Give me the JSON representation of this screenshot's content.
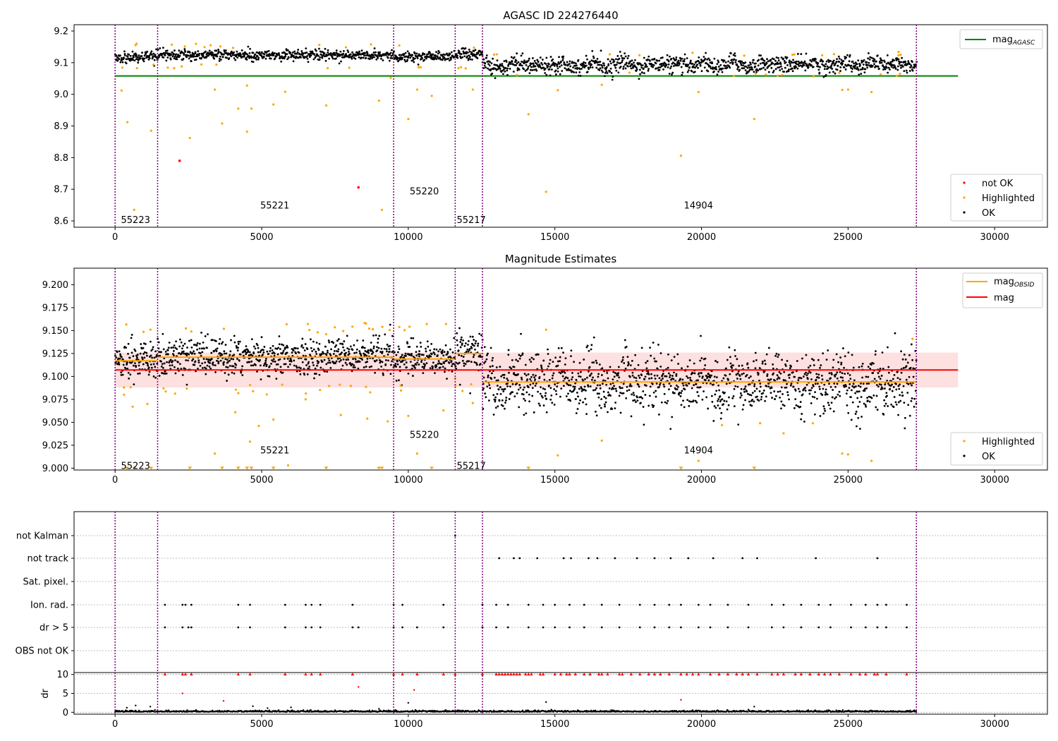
{
  "chart_data": [
    {
      "type": "scatter",
      "title": "AGASC ID 224276440",
      "xlim": [
        -1400,
        31800
      ],
      "ylim": [
        8.58,
        9.22
      ],
      "x_ticks": [
        0,
        5000,
        10000,
        15000,
        20000,
        25000,
        30000
      ],
      "y_ticks": [
        8.6,
        8.7,
        8.8,
        8.9,
        9.0,
        9.1,
        9.2
      ],
      "y_tick_labels": [
        "8.6",
        "8.7",
        "8.8",
        "8.9",
        "9.0",
        "9.1",
        "9.2"
      ],
      "obsid_boundaries": [
        0,
        1450,
        9500,
        11600,
        12530,
        27330
      ],
      "obsid_labels": [
        {
          "text": "55223",
          "x": 200,
          "y": 8.605
        },
        {
          "text": "55221",
          "x": 4950,
          "y": 8.65
        },
        {
          "text": "55220",
          "x": 10050,
          "y": 8.695
        },
        {
          "text": "55217",
          "x": 11650,
          "y": 8.605
        },
        {
          "text": "14904",
          "x": 19400,
          "y": 8.65
        }
      ],
      "agasc_mag": {
        "value": 9.058,
        "x_range": [
          0,
          28750
        ],
        "color": "#008000"
      },
      "segments": [
        {
          "x": [
            0,
            1450
          ],
          "center": 9.117,
          "spread": 0.009
        },
        {
          "x": [
            1450,
            9500
          ],
          "center": 9.124,
          "spread": 0.008
        },
        {
          "x": [
            9500,
            11600
          ],
          "center": 9.12,
          "spread": 0.008
        },
        {
          "x": [
            11600,
            12530
          ],
          "center": 9.126,
          "spread": 0.01
        },
        {
          "x": [
            12530,
            27330
          ],
          "center": 9.094,
          "spread": 0.013
        }
      ],
      "highlighted_points": [
        [
          220,
          9.012
        ],
        [
          420,
          8.912
        ],
        [
          650,
          8.635
        ],
        [
          1230,
          8.885
        ],
        [
          2550,
          8.862
        ],
        [
          3400,
          9.015
        ],
        [
          3650,
          8.908
        ],
        [
          4200,
          8.955
        ],
        [
          4500,
          8.882
        ],
        [
          4500,
          9.028
        ],
        [
          4650,
          8.955
        ],
        [
          5400,
          8.968
        ],
        [
          5800,
          9.008
        ],
        [
          7200,
          8.965
        ],
        [
          9000,
          8.98
        ],
        [
          9100,
          8.635
        ],
        [
          9400,
          9.052
        ],
        [
          10000,
          8.922
        ],
        [
          10300,
          9.015
        ],
        [
          10800,
          8.995
        ],
        [
          12200,
          9.015
        ],
        [
          14100,
          8.937
        ],
        [
          14700,
          8.692
        ],
        [
          15100,
          9.013
        ],
        [
          16600,
          9.03
        ],
        [
          19300,
          8.806
        ],
        [
          19900,
          9.007
        ],
        [
          21800,
          8.922
        ],
        [
          24800,
          9.014
        ],
        [
          25000,
          9.015
        ],
        [
          25800,
          9.007
        ]
      ],
      "not_ok_points": [
        [
          2200,
          8.79
        ],
        [
          8300,
          8.706
        ]
      ],
      "legend_line": {
        "label": "mag",
        "sub": "AGASC",
        "color": "#008000"
      },
      "legend_points": [
        {
          "label": "not OK",
          "color": "#ff0000"
        },
        {
          "label": "Highlighted",
          "color": "#ffa500"
        },
        {
          "label": "OK",
          "color": "#000000"
        }
      ]
    },
    {
      "type": "scatter",
      "title": "Magnitude Estimates",
      "xlim": [
        -1400,
        31800
      ],
      "ylim": [
        8.998,
        9.218
      ],
      "x_ticks": [
        0,
        5000,
        10000,
        15000,
        20000,
        25000,
        30000
      ],
      "y_ticks": [
        9.0,
        9.025,
        9.05,
        9.075,
        9.1,
        9.125,
        9.15,
        9.175,
        9.2
      ],
      "y_tick_labels": [
        "9.000",
        "9.025",
        "9.050",
        "9.075",
        "9.100",
        "9.125",
        "9.150",
        "9.175",
        "9.200"
      ],
      "obsid_boundaries": [
        0,
        1450,
        9500,
        11600,
        12530,
        27330
      ],
      "obsid_labels": [
        {
          "text": "55223",
          "x": 200,
          "y": 9.003
        },
        {
          "text": "55221",
          "x": 4950,
          "y": 9.02
        },
        {
          "text": "55220",
          "x": 10050,
          "y": 9.037
        },
        {
          "text": "55217",
          "x": 11650,
          "y": 9.003
        },
        {
          "text": "14904",
          "x": 19400,
          "y": 9.02
        }
      ],
      "mag": {
        "value": 9.107,
        "band": [
          9.088,
          9.126
        ],
        "x_range": [
          0,
          28750
        ],
        "color": "#ff0000",
        "band_color": "#fde0e0"
      },
      "mag_obsid": [
        {
          "x": [
            0,
            1450
          ],
          "value": 9.117
        },
        {
          "x": [
            1450,
            9500
          ],
          "value": 9.121
        },
        {
          "x": [
            9500,
            11600
          ],
          "value": 9.119
        },
        {
          "x": [
            11600,
            12530
          ],
          "value": 9.125
        },
        {
          "x": [
            12530,
            27330
          ],
          "value": 9.094
        }
      ],
      "segments": [
        {
          "x": [
            0,
            1450
          ],
          "center": 9.117,
          "spread": 0.009
        },
        {
          "x": [
            1450,
            9500
          ],
          "center": 9.121,
          "spread": 0.01
        },
        {
          "x": [
            9500,
            11600
          ],
          "center": 9.119,
          "spread": 0.009
        },
        {
          "x": [
            11600,
            12530
          ],
          "center": 9.124,
          "spread": 0.011
        },
        {
          "x": [
            12530,
            27330
          ],
          "center": 9.094,
          "spread": 0.016
        }
      ],
      "highlighted_points": [
        [
          300,
          9.088
        ],
        [
          600,
          9.067
        ],
        [
          1100,
          9.07
        ],
        [
          1650,
          9.087
        ],
        [
          4100,
          9.061
        ],
        [
          4600,
          9.029
        ],
        [
          4900,
          9.046
        ],
        [
          5400,
          9.053
        ],
        [
          5700,
          9.091
        ],
        [
          5900,
          9.003
        ],
        [
          6500,
          9.075
        ],
        [
          7700,
          9.058
        ],
        [
          8600,
          9.054
        ],
        [
          9300,
          9.051
        ],
        [
          10000,
          9.057
        ],
        [
          10300,
          9.016
        ],
        [
          11200,
          9.063
        ],
        [
          11600,
          9.098
        ],
        [
          12200,
          9.071
        ],
        [
          14700,
          9.151
        ],
        [
          15100,
          9.014
        ],
        [
          16600,
          9.03
        ],
        [
          19900,
          9.008
        ],
        [
          20700,
          9.047
        ],
        [
          22000,
          9.049
        ],
        [
          22800,
          9.038
        ],
        [
          23800,
          9.049
        ],
        [
          24800,
          9.016
        ],
        [
          25000,
          9.015
        ],
        [
          25800,
          9.008
        ],
        [
          27200,
          9.141
        ],
        [
          3400,
          9.016
        ],
        [
          7200,
          9.146
        ],
        [
          2600,
          9.149
        ]
      ],
      "clipped_points": [
        400,
        650,
        1230,
        2550,
        3650,
        4200,
        4500,
        4650,
        5400,
        7200,
        9000,
        9100,
        10800,
        14100,
        19300,
        21800
      ],
      "legend_lines": [
        {
          "label": "mag",
          "sub": "OBSID",
          "color": "#ffa500"
        },
        {
          "label": "mag",
          "sub": "",
          "color": "#ff0000"
        }
      ],
      "legend_points": [
        {
          "label": "Highlighted",
          "color": "#ffa500"
        },
        {
          "label": "OK",
          "color": "#000000"
        }
      ]
    },
    {
      "type": "scatter",
      "title": "",
      "xlim": [
        -1400,
        31800
      ],
      "categories": [
        "not Kalman",
        "not track",
        "Sat. pixel.",
        "Ion. rad.",
        "dr > 5",
        "OBS not OK"
      ],
      "flag_points": {
        "not Kalman": [
          11600
        ],
        "not track": [
          13100,
          13600,
          13800,
          14400,
          15300,
          15550,
          16150,
          16450,
          17050,
          17800,
          18400,
          18950,
          19550,
          20400,
          21400,
          21900,
          23900,
          26000
        ],
        "Sat. pixel.": [],
        "Ion. rad.": [
          1700,
          2300,
          2400,
          2600,
          4200,
          4600,
          5800,
          6500,
          6700,
          7000,
          8100,
          9500,
          9800,
          11200,
          12530,
          13000,
          13400,
          14100,
          14600,
          15000,
          15500,
          16000,
          16600,
          17200,
          17900,
          18400,
          18900,
          19300,
          19900,
          20300,
          20900,
          21600,
          22400,
          22800,
          23400,
          24000,
          24400,
          25100,
          25600,
          26000,
          26300,
          27000
        ],
        "dr > 5": [
          1700,
          2300,
          2500,
          2600,
          4200,
          4600,
          5800,
          6500,
          6700,
          7000,
          8100,
          8300,
          9500,
          9800,
          10300,
          11200,
          12530,
          13000,
          13400,
          14100,
          14600,
          15000,
          15500,
          16000,
          16600,
          17200,
          17900,
          18400,
          18900,
          19300,
          19900,
          20300,
          20900,
          21600,
          22400,
          22800,
          23400,
          24000,
          24400,
          25100,
          25600,
          26000,
          26300,
          27000
        ],
        "OBS not OK": []
      }
    },
    {
      "type": "scatter",
      "title": "",
      "ylabel": "dr",
      "xlim": [
        -1400,
        31800
      ],
      "ylim": [
        -0.5,
        10.5
      ],
      "x_ticks": [
        0,
        5000,
        10000,
        15000,
        20000,
        25000,
        30000
      ],
      "y_ticks": [
        0,
        5,
        10
      ],
      "clipped_x": [
        1700,
        2300,
        2400,
        2600,
        4200,
        4600,
        5800,
        6500,
        6700,
        7000,
        8100,
        9500,
        9800,
        10300,
        11200,
        11600,
        12530,
        13000,
        13100,
        13200,
        13300,
        13400,
        13500,
        13600,
        13700,
        13800,
        14000,
        14100,
        14200,
        14500,
        14600,
        15000,
        15200,
        15400,
        15500,
        15700,
        16000,
        16200,
        16500,
        16600,
        16800,
        17200,
        17300,
        17600,
        17900,
        18200,
        18400,
        18600,
        18900,
        19300,
        19500,
        19700,
        19900,
        20300,
        20600,
        20900,
        21200,
        21400,
        21600,
        21900,
        22400,
        22600,
        22800,
        23200,
        23400,
        23700,
        24000,
        24200,
        24400,
        24700,
        25100,
        25400,
        25600,
        25900,
        26000,
        26300,
        27000
      ],
      "red_points": [
        [
          2300,
          5.0
        ],
        [
          8300,
          6.7
        ],
        [
          10200,
          5.9
        ],
        [
          19300,
          3.3
        ],
        [
          3700,
          3.0
        ]
      ],
      "outlier_points": [
        [
          400,
          1.2
        ],
        [
          700,
          1.8
        ],
        [
          1200,
          1.5
        ],
        [
          4700,
          1.6
        ],
        [
          5200,
          1.1
        ],
        [
          6000,
          1.3
        ],
        [
          9000,
          0.9
        ],
        [
          10000,
          2.5
        ],
        [
          14700,
          2.7
        ],
        [
          21800,
          1.5
        ]
      ]
    }
  ],
  "flag_labels": [
    "not Kalman",
    "not track",
    "Sat. pixel.",
    "Ion. rad.",
    "dr > 5",
    "OBS not OK"
  ],
  "colors": {
    "ok": "#000000",
    "highlighted": "#ffa500",
    "not_ok": "#ff0000",
    "boundary": "#800080",
    "agasc": "#008000",
    "mag": "#ff0000",
    "mag_obsid": "#ffa500"
  }
}
